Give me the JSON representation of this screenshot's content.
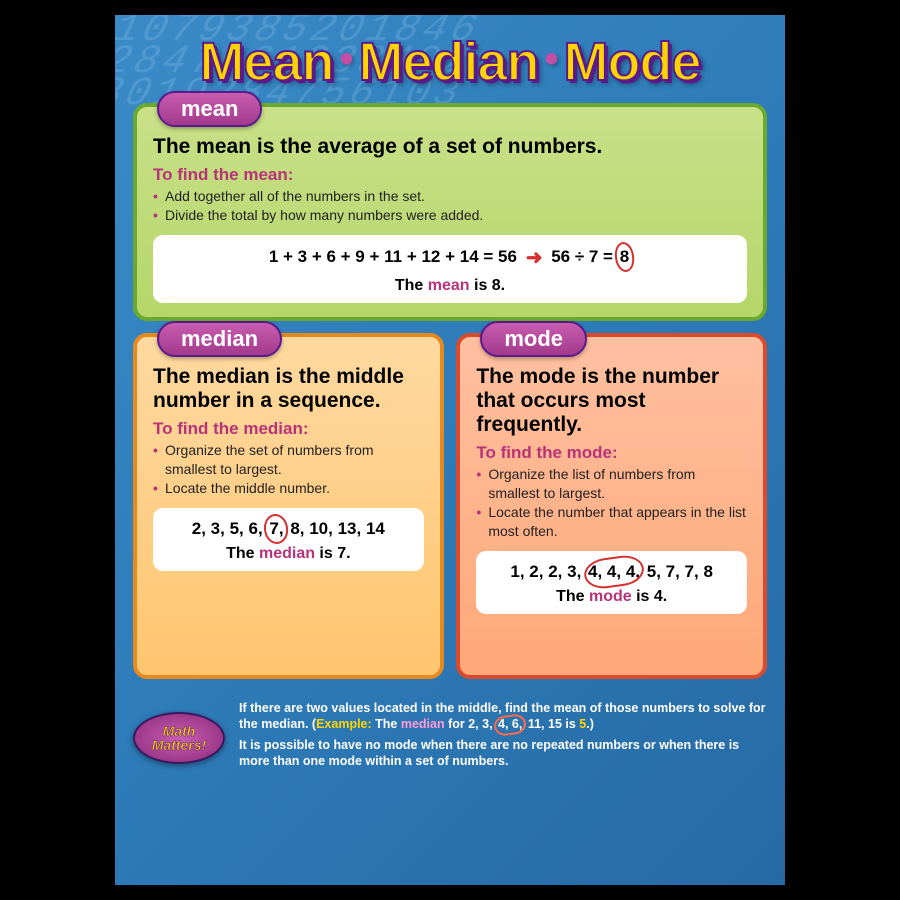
{
  "title": {
    "w1": "Mean",
    "w2": "Median",
    "w3": "Mode"
  },
  "colors": {
    "poster_bg_from": "#3a8bc8",
    "poster_bg_to": "#266aa5",
    "title_fill": "#ffd400",
    "title_stroke": "#5b1a8c",
    "pill_from": "#c95db0",
    "pill_to": "#a23a8c",
    "accent_magenta": "#b8327a",
    "circle_red": "#d4302e",
    "mean_bg": "#c9e088",
    "mean_border": "#6aa82f",
    "median_bg": "#ffd9a0",
    "median_border": "#e68a1e",
    "mode_bg": "#ffc0a0",
    "mode_border": "#d94a2e"
  },
  "mean": {
    "label": "mean",
    "definition": "The mean is the average of a set of numbers.",
    "subhead": "To find the mean:",
    "steps": [
      "Add together all of the numbers in the set.",
      "Divide the total by how many numbers were added."
    ],
    "eq_left": "1 + 3 + 6 + 9 + 11 + 12 + 14 = 56",
    "eq_right": "56 ÷ 7 =",
    "answer": "8",
    "result_pre": "The ",
    "result_word": "mean",
    "result_post": " is 8."
  },
  "median": {
    "label": "median",
    "definition": "The median is the middle number in a sequence.",
    "subhead": "To find the median:",
    "steps": [
      "Organize the set of numbers from smallest to largest.",
      "Locate the middle number."
    ],
    "seq_pre": "2, 3, 5, 6,",
    "seq_mid": "7,",
    "seq_post": "8, 10, 13, 14",
    "result_pre": "The ",
    "result_word": "median",
    "result_post": " is 7."
  },
  "mode": {
    "label": "mode",
    "definition": "The mode is the number that occurs most frequently.",
    "subhead": "To find the mode:",
    "steps": [
      "Organize the list of numbers from smallest to largest.",
      "Locate the number that appears in the list most often."
    ],
    "seq_pre": "1, 2, 2, 3,",
    "seq_mid": "4, 4, 4,",
    "seq_post": "5, 7, 7, 8",
    "result_pre": "The ",
    "result_word": "mode",
    "result_post": " is 4."
  },
  "badge": {
    "line1": "Math",
    "line2": "Matters!"
  },
  "footer": {
    "note1_pre": "If there are two values located in the middle, find the mean of those numbers to solve for the median. (",
    "ex_label": "Example:",
    "ex_pre": " The ",
    "ex_word": "median",
    "ex_mid": " for 2, 3, ",
    "ex_circ": "4, 6,",
    "ex_post1": " 11, 15 is ",
    "ex_ans": "5",
    "ex_post2": ".)",
    "note2": "It is possible to have no mode when there are no repeated numbers or when there is more than one mode within a set of numbers."
  }
}
